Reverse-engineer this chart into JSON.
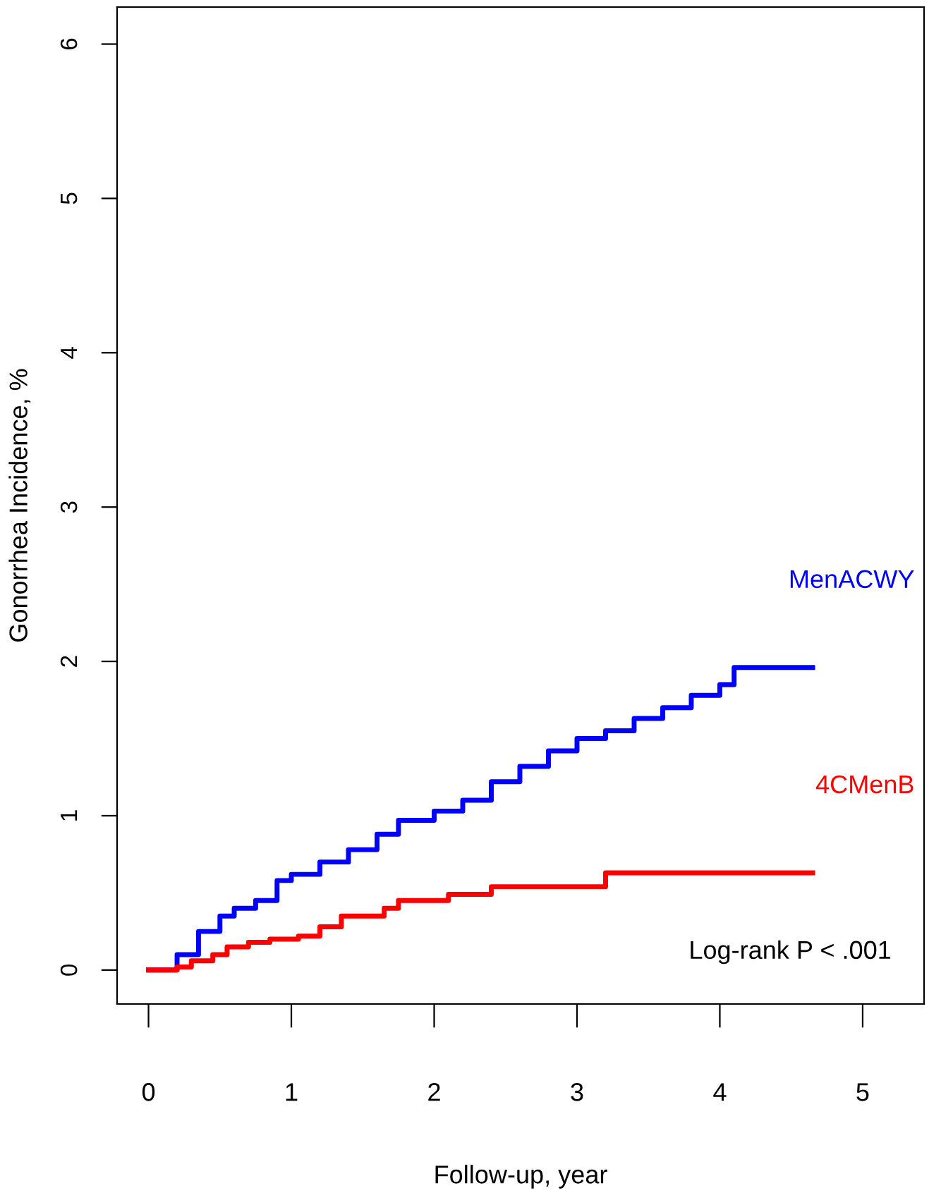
{
  "chart_data": {
    "type": "step",
    "xlabel": "Follow-up, year",
    "ylabel": "Gonorrhea Incidence, %",
    "xlim": [
      -0.22,
      5.43
    ],
    "ylim": [
      -0.22,
      6.24
    ],
    "xticks": [
      0,
      1,
      2,
      3,
      4,
      5
    ],
    "yticks": [
      0,
      1,
      2,
      3,
      4,
      5,
      6
    ],
    "grid": false,
    "legend": false,
    "series": [
      {
        "name": "MenACWY",
        "color": "#0000ff",
        "x": [
          0,
          0.1,
          0.2,
          0.35,
          0.5,
          0.6,
          0.75,
          0.9,
          1.0,
          1.2,
          1.4,
          1.6,
          1.75,
          2.0,
          2.2,
          2.4,
          2.6,
          2.8,
          3.0,
          3.2,
          3.4,
          3.6,
          3.8,
          4.0,
          4.1,
          4.65
        ],
        "values": [
          0,
          0,
          0.1,
          0.25,
          0.35,
          0.4,
          0.45,
          0.58,
          0.62,
          0.7,
          0.78,
          0.88,
          0.97,
          1.03,
          1.1,
          1.22,
          1.32,
          1.42,
          1.5,
          1.55,
          1.63,
          1.7,
          1.78,
          1.85,
          1.96,
          1.96
        ]
      },
      {
        "name": "4CMenB",
        "color": "#ff0000",
        "x": [
          0,
          0.2,
          0.3,
          0.45,
          0.55,
          0.7,
          0.85,
          1.05,
          1.2,
          1.35,
          1.65,
          1.75,
          2.1,
          2.4,
          3.2,
          4.65
        ],
        "values": [
          0,
          0.02,
          0.06,
          0.1,
          0.15,
          0.18,
          0.2,
          0.22,
          0.28,
          0.35,
          0.4,
          0.45,
          0.49,
          0.54,
          0.63,
          0.63
        ]
      }
    ],
    "annotations": [
      "Log-rank P < .001"
    ]
  }
}
